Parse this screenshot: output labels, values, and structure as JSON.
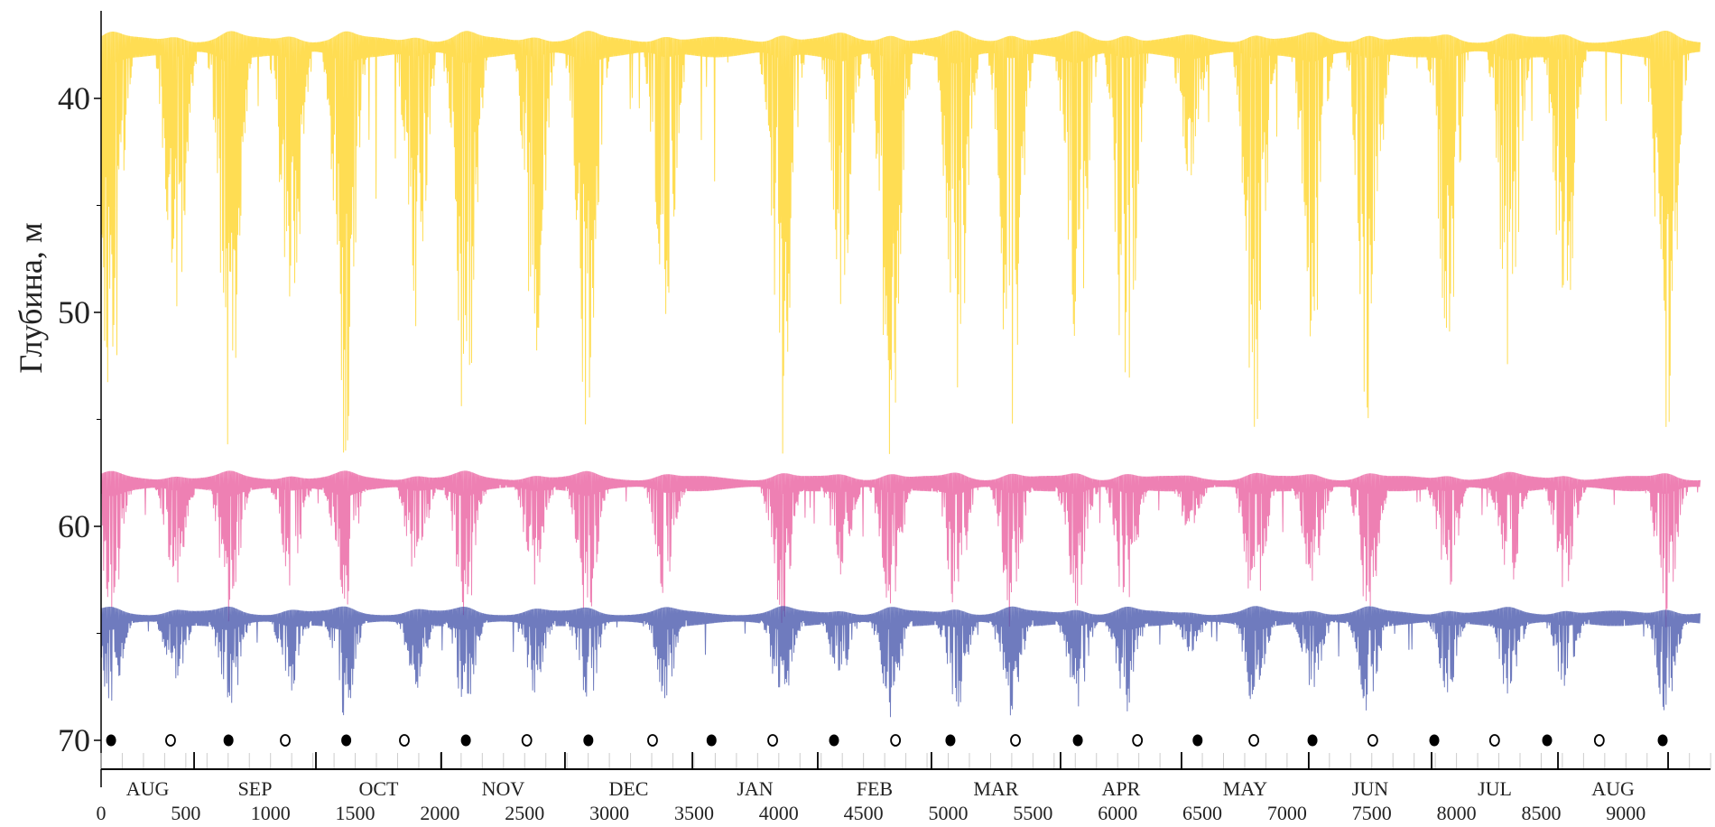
{
  "chart_data": {
    "type": "line",
    "title": "",
    "xlabel": "",
    "ylabel": "Глубина, м",
    "xlim": [
      0,
      9500
    ],
    "ylim": [
      36,
      71.35
    ],
    "y_inverted": true,
    "grid": false,
    "legend": "none",
    "yticks": [
      40,
      50,
      60,
      70
    ],
    "xticks": [
      0,
      500,
      1000,
      1500,
      2000,
      2500,
      3000,
      3500,
      4000,
      4500,
      5000,
      5500,
      6000,
      6500,
      7000,
      7500,
      8000,
      8500,
      9000
    ],
    "months": [
      {
        "label": "AUG",
        "start": 0,
        "end": 549
      },
      {
        "label": "SEP",
        "start": 549,
        "end": 1268
      },
      {
        "label": "OCT",
        "start": 1268,
        "end": 2008
      },
      {
        "label": "NOV",
        "start": 2008,
        "end": 2738
      },
      {
        "label": "DEC",
        "start": 2738,
        "end": 3490
      },
      {
        "label": "JAN",
        "start": 3490,
        "end": 4230
      },
      {
        "label": "FEB",
        "start": 4230,
        "end": 4901
      },
      {
        "label": "MAR",
        "start": 4901,
        "end": 5663
      },
      {
        "label": "APR",
        "start": 5663,
        "end": 6377
      },
      {
        "label": "MAY",
        "start": 6377,
        "end": 7128
      },
      {
        "label": "JUN",
        "start": 7128,
        "end": 7853
      },
      {
        "label": "JUL",
        "start": 7853,
        "end": 8599
      },
      {
        "label": "AUG",
        "start": 8599,
        "end": 9249
      }
    ],
    "full_moon": [
      59,
      752,
      1447,
      2153,
      2876,
      3603,
      4326,
      5013,
      5765,
      6472,
      7150,
      7869,
      8535,
      9217
    ],
    "new_moon": [
      410,
      1087,
      1790,
      2513,
      3255,
      3964,
      4689,
      5397,
      6117,
      6804,
      7506,
      8225,
      8843
    ],
    "dive_episodes": [
      {
        "center": 60,
        "strength": 0.95
      },
      {
        "center": 440,
        "strength": 0.7
      },
      {
        "center": 760,
        "strength": 1.0
      },
      {
        "center": 1120,
        "strength": 0.75
      },
      {
        "center": 1440,
        "strength": 1.0
      },
      {
        "center": 1860,
        "strength": 0.7
      },
      {
        "center": 2150,
        "strength": 1.0
      },
      {
        "center": 2560,
        "strength": 0.75
      },
      {
        "center": 2870,
        "strength": 0.95
      },
      {
        "center": 3330,
        "strength": 0.8
      },
      {
        "center": 4020,
        "strength": 1.0
      },
      {
        "center": 4370,
        "strength": 0.65
      },
      {
        "center": 4660,
        "strength": 1.0
      },
      {
        "center": 5050,
        "strength": 0.95
      },
      {
        "center": 5370,
        "strength": 1.0
      },
      {
        "center": 5760,
        "strength": 0.9
      },
      {
        "center": 6050,
        "strength": 1.0
      },
      {
        "center": 6430,
        "strength": 0.35
      },
      {
        "center": 6810,
        "strength": 0.95
      },
      {
        "center": 7150,
        "strength": 0.75
      },
      {
        "center": 7480,
        "strength": 0.95
      },
      {
        "center": 7950,
        "strength": 0.75
      },
      {
        "center": 8310,
        "strength": 0.8
      },
      {
        "center": 8640,
        "strength": 0.75
      },
      {
        "center": 9240,
        "strength": 1.0
      }
    ],
    "series": [
      {
        "id": "upper",
        "color": "#FFD21A",
        "baseline_depth": 37.6,
        "max_depth": 57.0
      },
      {
        "id": "middle",
        "color": "#E8569A",
        "baseline_depth": 58.0,
        "max_depth": 64.8
      },
      {
        "id": "lower",
        "color": "#3F4FA8",
        "baseline_depth": 64.3,
        "max_depth": 69.0
      }
    ]
  }
}
